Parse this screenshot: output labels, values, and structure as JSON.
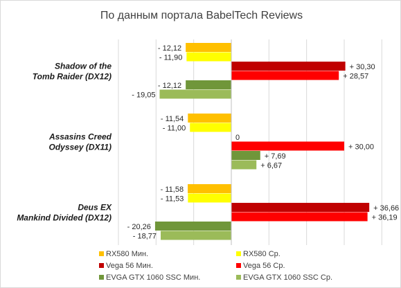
{
  "chart_data": {
    "type": "bar",
    "orientation": "horizontal",
    "title": "По данным портала BabelTech Reviews",
    "categories": [
      "Shadow of the Tomb Raider (DX12)",
      "Assasins Creed Odyssey (DX11)",
      "Deus EX Mankind Divided (DX12)"
    ],
    "category_lines": [
      [
        "Shadow of the",
        "Tomb Raider (DX12)"
      ],
      [
        "Assasins Creed",
        "Odyssey (DX11)"
      ],
      [
        "Deus EX",
        "Mankind Divided (DX12)"
      ]
    ],
    "xlim": [
      -30,
      40
    ],
    "grid": true,
    "legend_position": "bottom",
    "series": [
      {
        "name": "RX580 Мин.",
        "color": "#FFC000",
        "values": [
          -12.12,
          -11.54,
          -11.58
        ],
        "labels": [
          "- 12,12",
          "- 11,54",
          "- 11,58"
        ]
      },
      {
        "name": "RX580 Ср.",
        "color": "#FFFF00",
        "values": [
          -11.9,
          -11.0,
          -11.53
        ],
        "labels": [
          "- 11,90",
          "- 11,00",
          "- 11,53"
        ]
      },
      {
        "name": "Vega 56 Мин.",
        "color": "#C00000",
        "values": [
          30.3,
          0,
          36.66
        ],
        "labels": [
          "+ 30,30",
          "0",
          "+ 36,66"
        ]
      },
      {
        "name": "Vega 56 Ср.",
        "color": "#FF0000",
        "values": [
          28.57,
          30.0,
          36.19
        ],
        "labels": [
          "+ 28,57",
          "+ 30,00",
          "+ 36,19"
        ]
      },
      {
        "name": "EVGA GTX 1060 SSC Мин.",
        "color": "#70963A",
        "values": [
          -12.12,
          7.69,
          -20.26
        ],
        "labels": [
          "- 12,12",
          "+ 7,69",
          "- 20,26"
        ]
      },
      {
        "name": "EVGA GTX 1060 SSC Ср.",
        "color": "#9BBB59",
        "values": [
          -19.05,
          6.67,
          -18.77
        ],
        "labels": [
          "- 19,05",
          "+ 6,67",
          "- 18,77"
        ]
      }
    ]
  }
}
